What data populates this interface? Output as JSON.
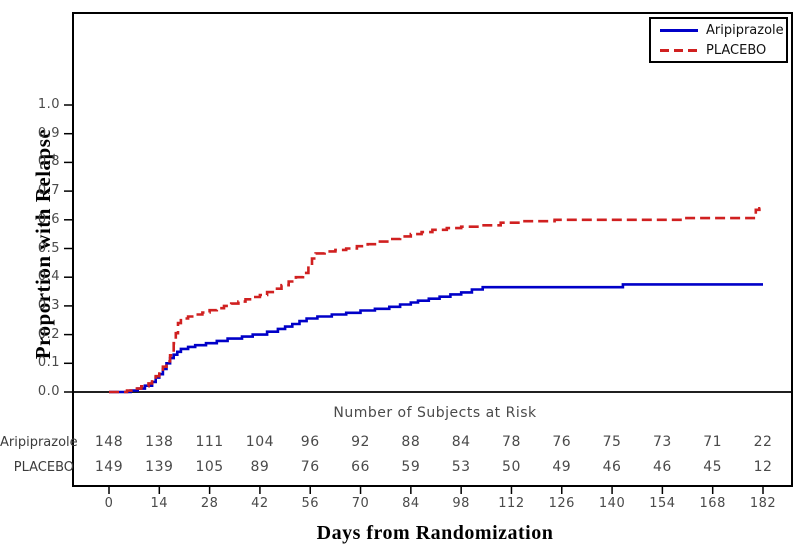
{
  "axis": {
    "y_title": "Proportion with Relapse",
    "x_title": "Days from Randomization"
  },
  "legend": {
    "items": [
      {
        "label": "Aripiprazole",
        "style": "solid",
        "color": "#0000C8"
      },
      {
        "label": "PLACEBO",
        "style": "dashed",
        "color": "#D02020"
      }
    ]
  },
  "risk_table": {
    "title": "Number of Subjects at Risk",
    "rows": [
      {
        "label": "Aripiprazole",
        "values": [
          "148",
          "138",
          "111",
          "104",
          "96",
          "92",
          "88",
          "84",
          "78",
          "76",
          "75",
          "73",
          "71",
          "22"
        ]
      },
      {
        "label": "PLACEBO",
        "values": [
          "149",
          "139",
          "105",
          "89",
          "76",
          "66",
          "59",
          "53",
          "50",
          "49",
          "46",
          "46",
          "45",
          "12"
        ]
      }
    ]
  },
  "chart_data": {
    "type": "line",
    "step": true,
    "title": "",
    "xlabel": "Days from Randomization",
    "ylabel": "Proportion with Relapse",
    "xlim": [
      0,
      182
    ],
    "ylim": [
      0.0,
      1.0
    ],
    "grid": false,
    "legend_position": "top-right",
    "x_ticks": [
      0,
      14,
      28,
      42,
      56,
      70,
      84,
      98,
      112,
      126,
      140,
      154,
      168,
      182
    ],
    "y_ticks": [
      "0.0",
      "0.1",
      "0.2",
      "0.3",
      "0.4",
      "0.5",
      "0.6",
      "0.7",
      "0.8",
      "0.9",
      "1.0"
    ],
    "series": [
      {
        "name": "Aripiprazole",
        "color": "#0000C8",
        "dash": "solid",
        "points": [
          [
            0,
            0
          ],
          [
            6,
            0.005
          ],
          [
            8,
            0.012
          ],
          [
            10,
            0.022
          ],
          [
            12,
            0.035
          ],
          [
            13,
            0.05
          ],
          [
            14,
            0.062
          ],
          [
            15,
            0.08
          ],
          [
            16,
            0.1
          ],
          [
            17,
            0.118
          ],
          [
            18,
            0.13
          ],
          [
            19,
            0.14
          ],
          [
            20,
            0.15
          ],
          [
            22,
            0.157
          ],
          [
            24,
            0.163
          ],
          [
            27,
            0.17
          ],
          [
            30,
            0.178
          ],
          [
            33,
            0.186
          ],
          [
            37,
            0.193
          ],
          [
            40,
            0.2
          ],
          [
            44,
            0.21
          ],
          [
            47,
            0.22
          ],
          [
            49,
            0.228
          ],
          [
            51,
            0.237
          ],
          [
            53,
            0.247
          ],
          [
            55,
            0.256
          ],
          [
            58,
            0.263
          ],
          [
            62,
            0.27
          ],
          [
            66,
            0.276
          ],
          [
            70,
            0.284
          ],
          [
            74,
            0.29
          ],
          [
            78,
            0.297
          ],
          [
            81,
            0.305
          ],
          [
            84,
            0.312
          ],
          [
            86,
            0.318
          ],
          [
            89,
            0.325
          ],
          [
            92,
            0.332
          ],
          [
            95,
            0.34
          ],
          [
            98,
            0.347
          ],
          [
            101,
            0.357
          ],
          [
            104,
            0.365
          ],
          [
            143,
            0.375
          ],
          [
            182,
            0.375
          ]
        ]
      },
      {
        "name": "PLACEBO",
        "color": "#D02020",
        "dash": "dashed",
        "points": [
          [
            0,
            0
          ],
          [
            5,
            0.005
          ],
          [
            7,
            0.012
          ],
          [
            9,
            0.02
          ],
          [
            11,
            0.03
          ],
          [
            12,
            0.042
          ],
          [
            13,
            0.055
          ],
          [
            14,
            0.07
          ],
          [
            15,
            0.088
          ],
          [
            16,
            0.107
          ],
          [
            17,
            0.128
          ],
          [
            18,
            0.17
          ],
          [
            18.6,
            0.205
          ],
          [
            19.2,
            0.24
          ],
          [
            20,
            0.256
          ],
          [
            22,
            0.263
          ],
          [
            24,
            0.27
          ],
          [
            26,
            0.277
          ],
          [
            28,
            0.285
          ],
          [
            30,
            0.292
          ],
          [
            32,
            0.3
          ],
          [
            34,
            0.308
          ],
          [
            36,
            0.315
          ],
          [
            38,
            0.323
          ],
          [
            40,
            0.331
          ],
          [
            42,
            0.338
          ],
          [
            44,
            0.348
          ],
          [
            46,
            0.36
          ],
          [
            48,
            0.372
          ],
          [
            50,
            0.385
          ],
          [
            52,
            0.4
          ],
          [
            54,
            0.415
          ],
          [
            55.5,
            0.44
          ],
          [
            56.5,
            0.465
          ],
          [
            57.5,
            0.483
          ],
          [
            60,
            0.49
          ],
          [
            63,
            0.495
          ],
          [
            66,
            0.5
          ],
          [
            69,
            0.508
          ],
          [
            72,
            0.515
          ],
          [
            75,
            0.524
          ],
          [
            78,
            0.533
          ],
          [
            81,
            0.542
          ],
          [
            84,
            0.55
          ],
          [
            87,
            0.557
          ],
          [
            90,
            0.565
          ],
          [
            94,
            0.571
          ],
          [
            98,
            0.576
          ],
          [
            103,
            0.581
          ],
          [
            109,
            0.59
          ],
          [
            115,
            0.595
          ],
          [
            124,
            0.6
          ],
          [
            160,
            0.606
          ],
          [
            180,
            0.635
          ],
          [
            181,
            0.64
          ],
          [
            182,
            0.64
          ]
        ]
      }
    ]
  }
}
